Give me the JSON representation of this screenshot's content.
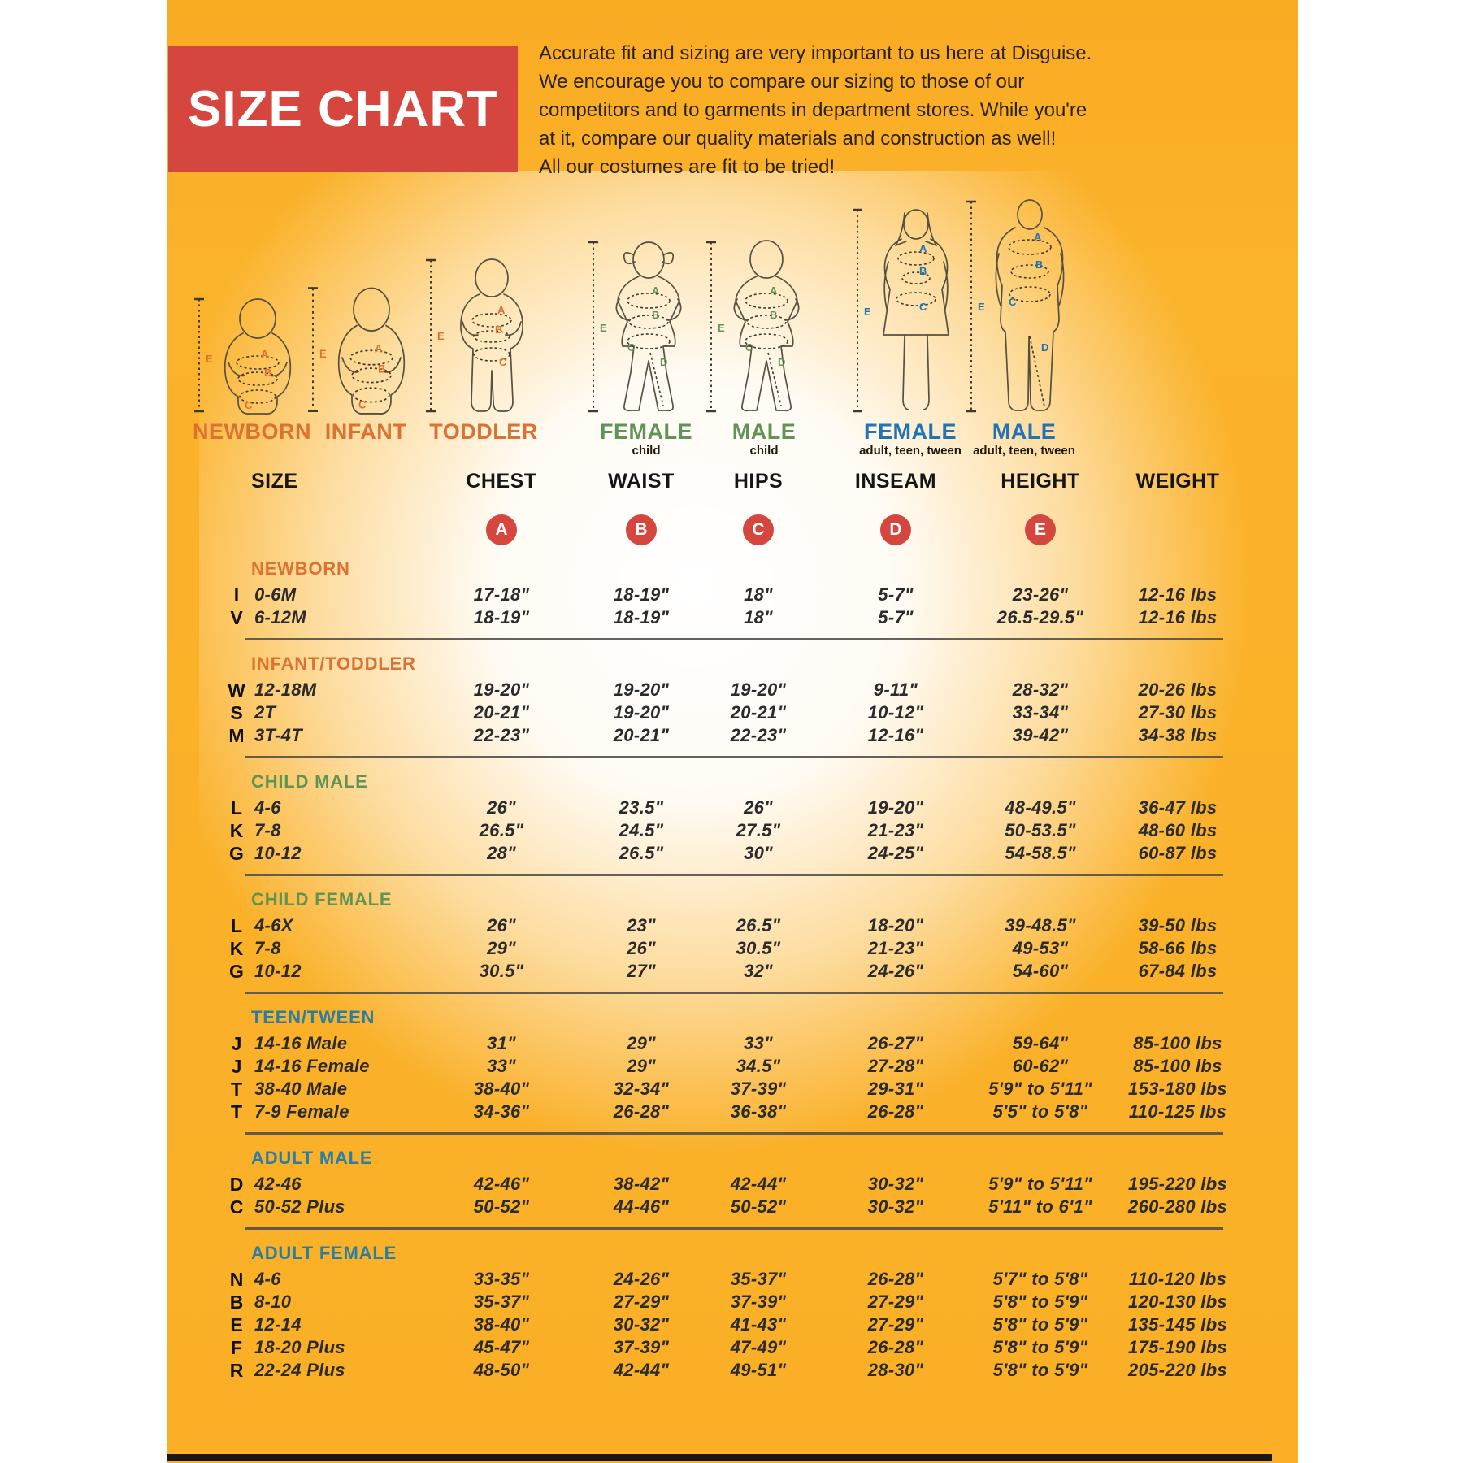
{
  "banner": {
    "title": "SIZE CHART"
  },
  "intro": {
    "lines": [
      "Accurate fit and sizing are very important to us here at Disguise.",
      "We encourage you to compare our sizing to those of our",
      "competitors and to garments in department stores. While you're",
      "at it, compare our quality materials and construction as well!",
      "All our costumes are fit to be tried!"
    ]
  },
  "colors": {
    "background_yellow": "#FBB32B",
    "banner_red": "#D5463F",
    "orange": "#DB7231",
    "green": "#5F9456",
    "blue": "#2273B5",
    "section_blue": "#2B7EA1",
    "text_dark": "#2b2b2b"
  },
  "figures": [
    {
      "label": "NEWBORN",
      "sublabel": ""
    },
    {
      "label": "INFANT",
      "sublabel": ""
    },
    {
      "label": "TODDLER",
      "sublabel": ""
    },
    {
      "label": "FEMALE",
      "sublabel": "child"
    },
    {
      "label": "MALE",
      "sublabel": "child"
    },
    {
      "label": "FEMALE",
      "sublabel": "adult, teen, tween"
    },
    {
      "label": "MALE",
      "sublabel": "adult, teen, tween"
    }
  ],
  "table": {
    "headers": [
      "SIZE",
      "CHEST",
      "WAIST",
      "HIPS",
      "INSEAM",
      "HEIGHT",
      "WEIGHT"
    ],
    "letters": [
      "A",
      "B",
      "C",
      "D",
      "E"
    ],
    "sections": [
      {
        "name": "NEWBORN",
        "color": "#DB7231",
        "rows": [
          {
            "letter": "I",
            "size": "0-6M",
            "chest": "17-18\"",
            "waist": "18-19\"",
            "hips": "18\"",
            "inseam": "5-7\"",
            "height": "23-26\"",
            "weight": "12-16 lbs"
          },
          {
            "letter": "V",
            "size": "6-12M",
            "chest": "18-19\"",
            "waist": "18-19\"",
            "hips": "18\"",
            "inseam": "5-7\"",
            "height": "26.5-29.5\"",
            "weight": "12-16 lbs"
          }
        ]
      },
      {
        "name": "INFANT/TODDLER",
        "color": "#DB7231",
        "rows": [
          {
            "letter": "W",
            "size": "12-18M",
            "chest": "19-20\"",
            "waist": "19-20\"",
            "hips": "19-20\"",
            "inseam": "9-11\"",
            "height": "28-32\"",
            "weight": "20-26 lbs"
          },
          {
            "letter": "S",
            "size": "2T",
            "chest": "20-21\"",
            "waist": "19-20\"",
            "hips": "20-21\"",
            "inseam": "10-12\"",
            "height": "33-34\"",
            "weight": "27-30 lbs"
          },
          {
            "letter": "M",
            "size": "3T-4T",
            "chest": "22-23\"",
            "waist": "20-21\"",
            "hips": "22-23\"",
            "inseam": "12-16\"",
            "height": "39-42\"",
            "weight": "34-38 lbs"
          }
        ]
      },
      {
        "name": "CHILD MALE",
        "color": "#5F9456",
        "rows": [
          {
            "letter": "L",
            "size": "4-6",
            "chest": "26\"",
            "waist": "23.5\"",
            "hips": "26\"",
            "inseam": "19-20\"",
            "height": "48-49.5\"",
            "weight": "36-47 lbs"
          },
          {
            "letter": "K",
            "size": "7-8",
            "chest": "26.5\"",
            "waist": "24.5\"",
            "hips": "27.5\"",
            "inseam": "21-23\"",
            "height": "50-53.5\"",
            "weight": "48-60 lbs"
          },
          {
            "letter": "G",
            "size": "10-12",
            "chest": "28\"",
            "waist": "26.5\"",
            "hips": "30\"",
            "inseam": "24-25\"",
            "height": "54-58.5\"",
            "weight": "60-87 lbs"
          }
        ]
      },
      {
        "name": "CHILD FEMALE",
        "color": "#5F9456",
        "rows": [
          {
            "letter": "L",
            "size": "4-6X",
            "chest": "26\"",
            "waist": "23\"",
            "hips": "26.5\"",
            "inseam": "18-20\"",
            "height": "39-48.5\"",
            "weight": "39-50 lbs"
          },
          {
            "letter": "K",
            "size": "7-8",
            "chest": "29\"",
            "waist": "26\"",
            "hips": "30.5\"",
            "inseam": "21-23\"",
            "height": "49-53\"",
            "weight": "58-66 lbs"
          },
          {
            "letter": "G",
            "size": "10-12",
            "chest": "30.5\"",
            "waist": "27\"",
            "hips": "32\"",
            "inseam": "24-26\"",
            "height": "54-60\"",
            "weight": "67-84 lbs"
          }
        ]
      },
      {
        "name": "TEEN/TWEEN",
        "color": "#2B7EA1",
        "rows": [
          {
            "letter": "J",
            "size": "14-16 Male",
            "chest": "31\"",
            "waist": "29\"",
            "hips": "33\"",
            "inseam": "26-27\"",
            "height": "59-64\"",
            "weight": "85-100 lbs"
          },
          {
            "letter": "J",
            "size": "14-16 Female",
            "chest": "33\"",
            "waist": "29\"",
            "hips": "34.5\"",
            "inseam": "27-28\"",
            "height": "60-62\"",
            "weight": "85-100 lbs"
          },
          {
            "letter": "T",
            "size": "38-40 Male",
            "chest": "38-40\"",
            "waist": "32-34\"",
            "hips": "37-39\"",
            "inseam": "29-31\"",
            "height": "5'9\" to 5'11\"",
            "weight": "153-180 lbs"
          },
          {
            "letter": "T",
            "size": "7-9 Female",
            "chest": "34-36\"",
            "waist": "26-28\"",
            "hips": "36-38\"",
            "inseam": "26-28\"",
            "height": "5'5\" to 5'8\"",
            "weight": "110-125 lbs"
          }
        ]
      },
      {
        "name": "ADULT MALE",
        "color": "#2B7EA1",
        "rows": [
          {
            "letter": "D",
            "size": "42-46",
            "chest": "42-46\"",
            "waist": "38-42\"",
            "hips": "42-44\"",
            "inseam": "30-32\"",
            "height": "5'9\" to 5'11\"",
            "weight": "195-220 lbs"
          },
          {
            "letter": "C",
            "size": "50-52 Plus",
            "chest": "50-52\"",
            "waist": "44-46\"",
            "hips": "50-52\"",
            "inseam": "30-32\"",
            "height": "5'11\" to 6'1\"",
            "weight": "260-280 lbs"
          }
        ]
      },
      {
        "name": "ADULT FEMALE",
        "color": "#2B7EA1",
        "rows": [
          {
            "letter": "N",
            "size": "4-6",
            "chest": "33-35\"",
            "waist": "24-26\"",
            "hips": "35-37\"",
            "inseam": "26-28\"",
            "height": "5'7\" to 5'8\"",
            "weight": "110-120 lbs"
          },
          {
            "letter": "B",
            "size": "8-10",
            "chest": "35-37\"",
            "waist": "27-29\"",
            "hips": "37-39\"",
            "inseam": "27-29\"",
            "height": "5'8\" to 5'9\"",
            "weight": "120-130 lbs"
          },
          {
            "letter": "E",
            "size": "12-14",
            "chest": "38-40\"",
            "waist": "30-32\"",
            "hips": "41-43\"",
            "inseam": "27-29\"",
            "height": "5'8\" to 5'9\"",
            "weight": "135-145 lbs"
          },
          {
            "letter": "F",
            "size": "18-20 Plus",
            "chest": "45-47\"",
            "waist": "37-39\"",
            "hips": "47-49\"",
            "inseam": "26-28\"",
            "height": "5'8\" to 5'9\"",
            "weight": "175-190 lbs"
          },
          {
            "letter": "R",
            "size": "22-24 Plus",
            "chest": "48-50\"",
            "waist": "42-44\"",
            "hips": "49-51\"",
            "inseam": "28-30\"",
            "height": "5'8\" to 5'9\"",
            "weight": "205-220 lbs"
          }
        ]
      }
    ]
  }
}
